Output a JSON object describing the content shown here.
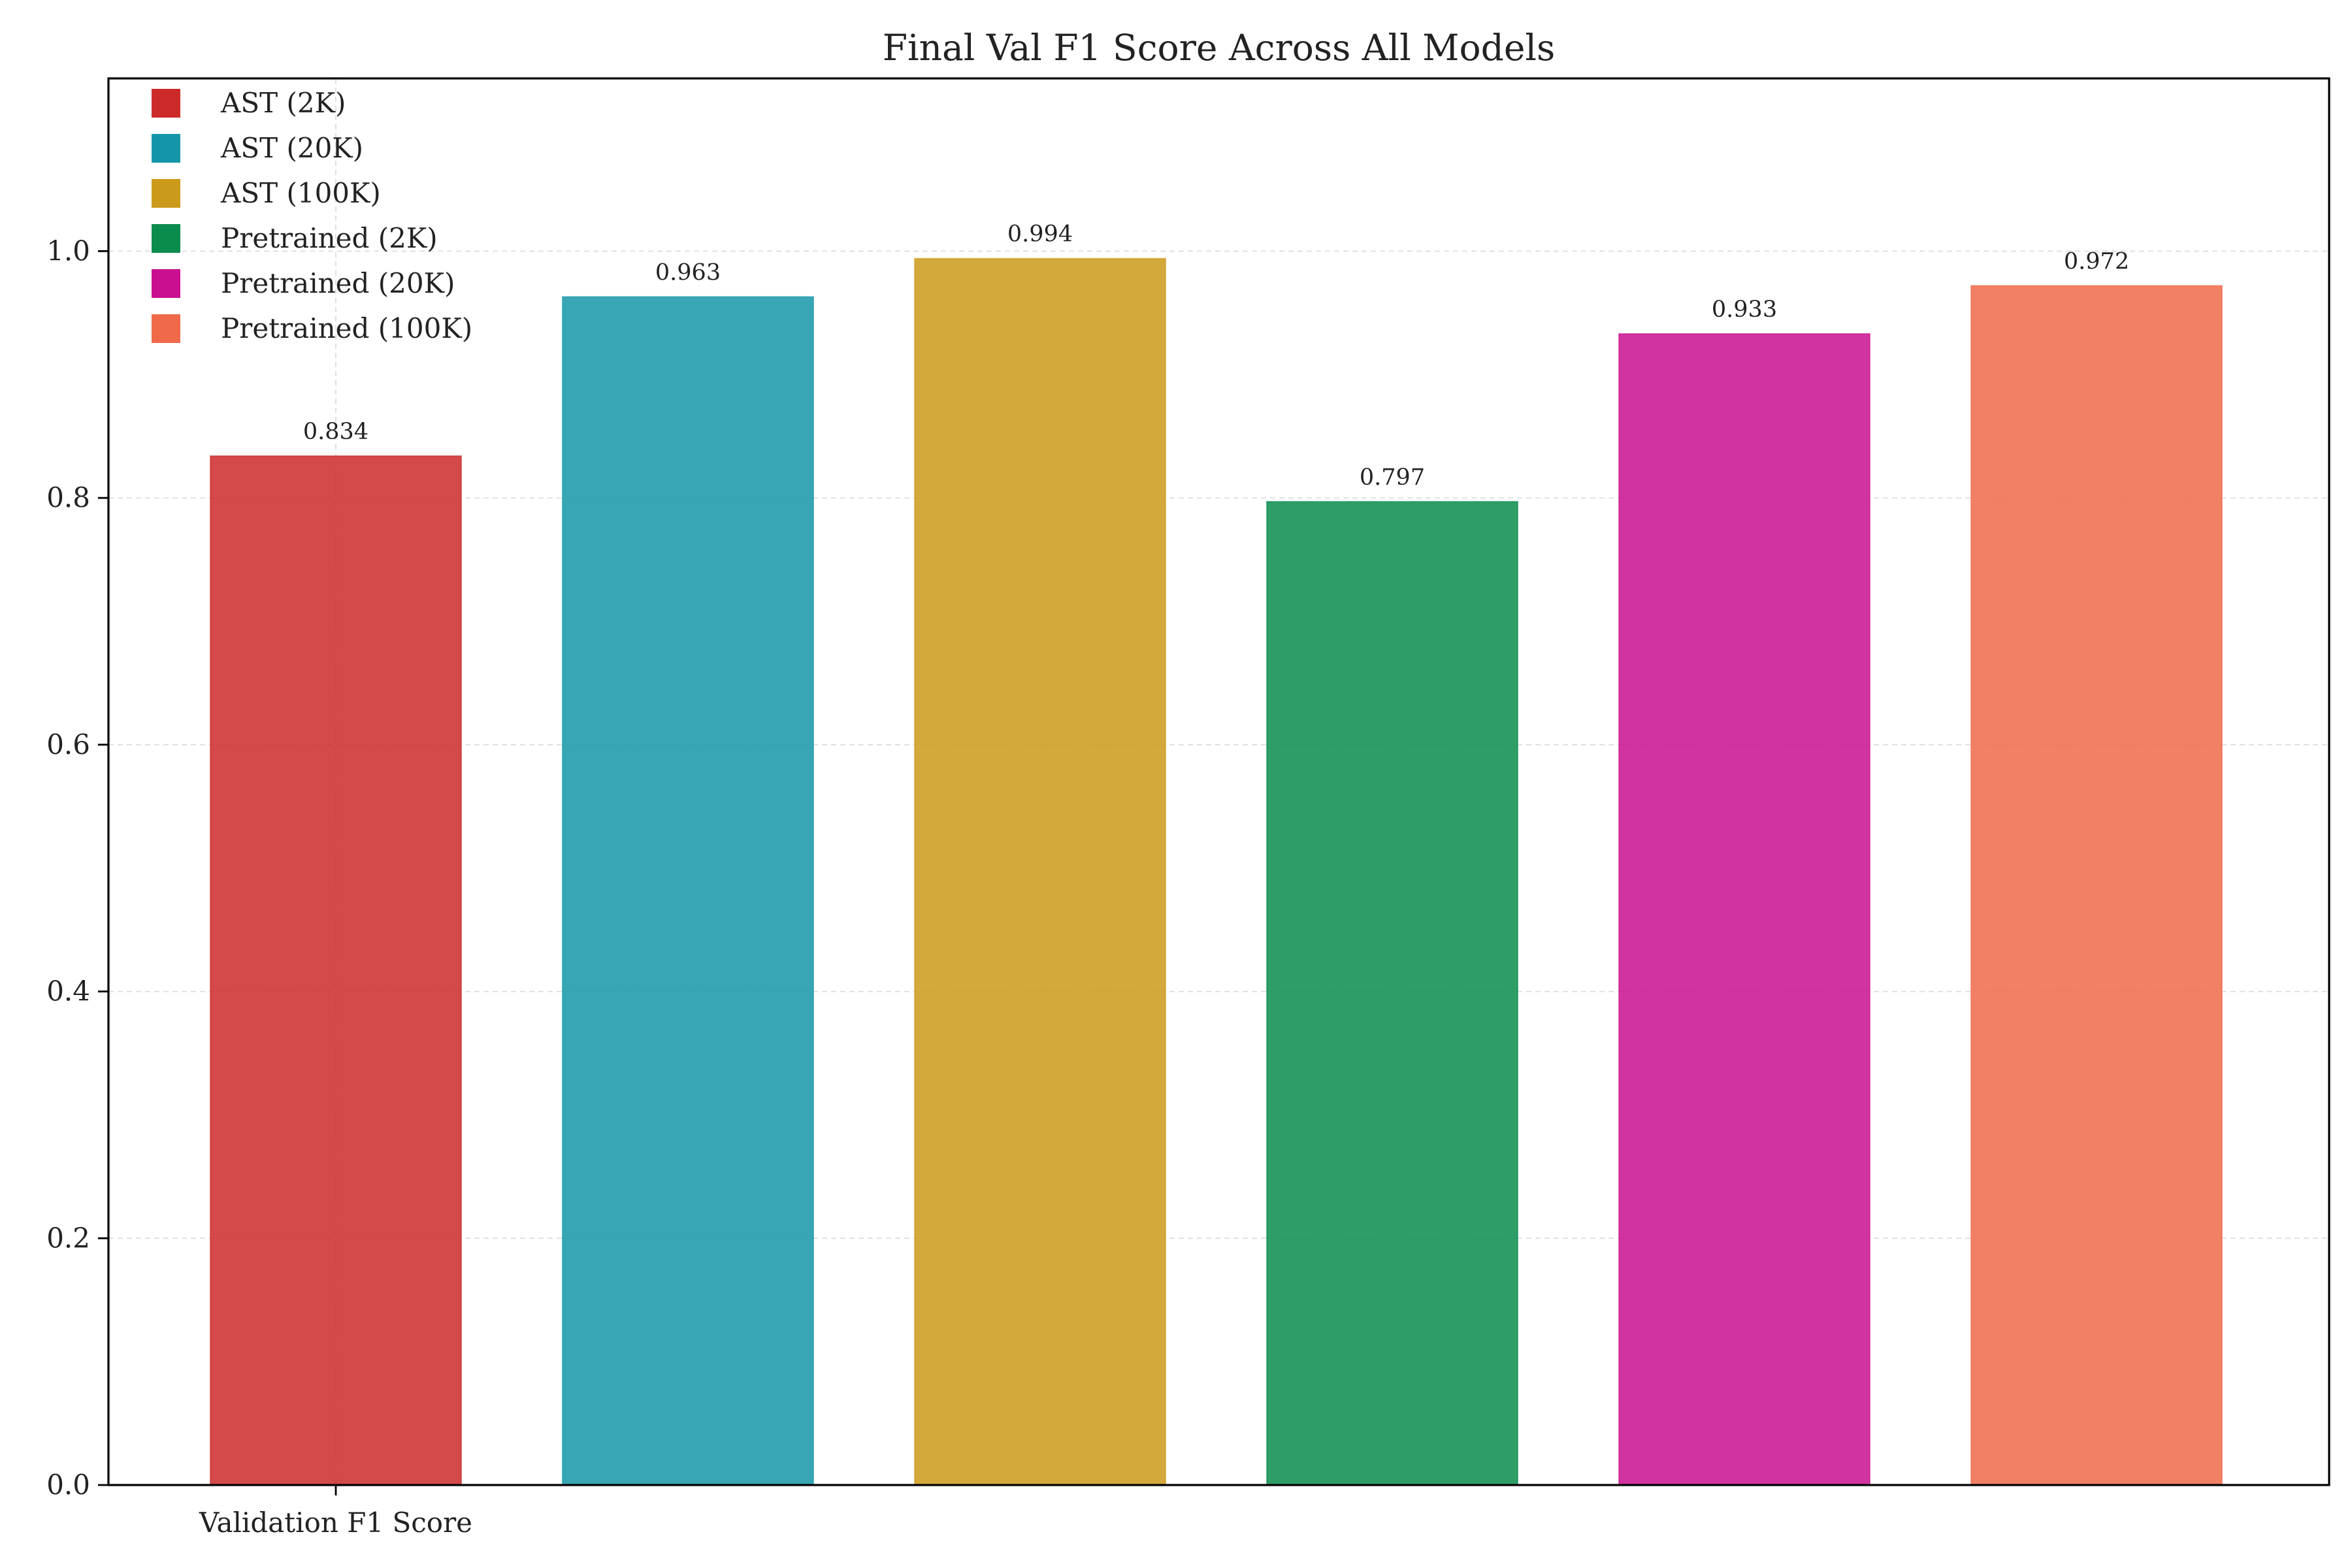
{
  "chart_data": {
    "type": "bar",
    "title": "Final Val F1 Score Across All Models",
    "xlabel": "",
    "ylabel": "",
    "categories": [
      "Validation F1 Score"
    ],
    "series": [
      {
        "name": "AST (2K)",
        "values": [
          0.834
        ],
        "color": "#cc2a2a",
        "value_label": "0.834"
      },
      {
        "name": "AST (20K)",
        "values": [
          0.963
        ],
        "color": "#1596a8",
        "value_label": "0.963"
      },
      {
        "name": "AST (100K)",
        "values": [
          0.994
        ],
        "color": "#cc9a1a",
        "value_label": "0.994"
      },
      {
        "name": "Pretrained (2K)",
        "values": [
          0.797
        ],
        "color": "#0a8c4e",
        "value_label": "0.797"
      },
      {
        "name": "Pretrained (20K)",
        "values": [
          0.933
        ],
        "color": "#c91090",
        "value_label": "0.933"
      },
      {
        "name": "Pretrained (100K)",
        "values": [
          0.972
        ],
        "color": "#f06a4a",
        "value_label": "0.972"
      }
    ],
    "ylim": [
      0,
      1.14
    ],
    "yticks": [
      0.0,
      0.2,
      0.4,
      0.6,
      0.8,
      1.0
    ],
    "ytick_labels": [
      "0.0",
      "0.2",
      "0.4",
      "0.6",
      "0.8",
      "1.0"
    ],
    "grid": true,
    "legend_position": "top-left"
  }
}
